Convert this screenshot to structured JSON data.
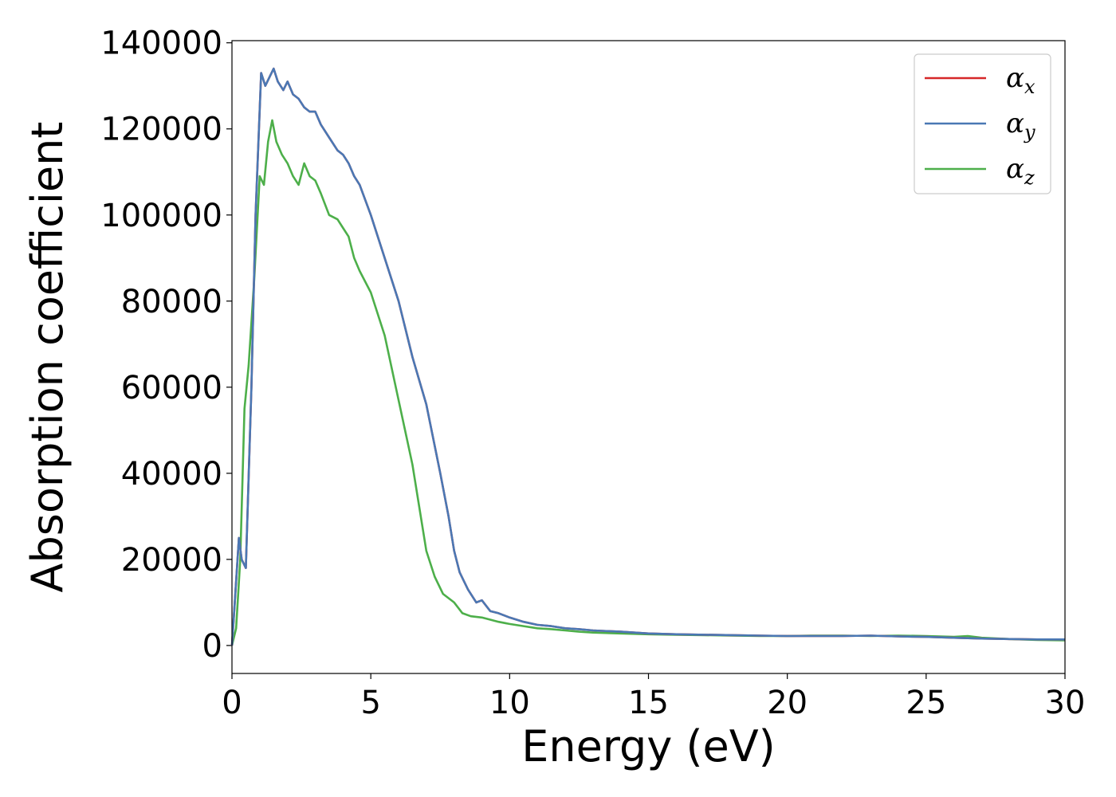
{
  "chart_data": {
    "type": "line",
    "xlabel": "Energy (eV)",
    "ylabel": "Absorption coefficient",
    "xlim": [
      0,
      30
    ],
    "ylim": [
      -6500,
      140500
    ],
    "xticks": [
      0,
      5,
      10,
      15,
      20,
      25,
      30
    ],
    "xtick_labels": [
      "0",
      "5",
      "10",
      "15",
      "20",
      "25",
      "30"
    ],
    "yticks": [
      0,
      20000,
      40000,
      60000,
      80000,
      100000,
      120000,
      140000
    ],
    "ytick_labels": [
      "0",
      "20000",
      "40000",
      "60000",
      "80000",
      "100000",
      "120000",
      "140000"
    ],
    "grid": false,
    "legend_position": "top-right",
    "series": [
      {
        "name": "α_x",
        "label_main": "α",
        "label_sub": "x",
        "color": "#d62728",
        "x": [
          0,
          0.1,
          0.25,
          0.35,
          0.5,
          0.7,
          0.85,
          1.05,
          1.2,
          1.35,
          1.5,
          1.65,
          1.85,
          2.0,
          2.2,
          2.4,
          2.6,
          2.8,
          3.0,
          3.2,
          3.5,
          3.8,
          4.0,
          4.2,
          4.4,
          4.6,
          5.0,
          5.5,
          6.0,
          6.5,
          7.0,
          7.5,
          7.8,
          8.0,
          8.2,
          8.5,
          8.8,
          9.0,
          9.3,
          9.6,
          10.0,
          10.5,
          11.0,
          11.5,
          12.0,
          12.5,
          13.0,
          14.0,
          15.0,
          16.0,
          17.0,
          18.0,
          19.0,
          20.0,
          21.0,
          22.0,
          23.0,
          24.0,
          25.0,
          26.0,
          27.0,
          28.0,
          29.0,
          30.0
        ],
        "y": [
          0,
          10000,
          25000,
          20000,
          18000,
          60000,
          100000,
          133000,
          130000,
          132000,
          134000,
          131000,
          129000,
          131000,
          128000,
          127000,
          125000,
          124000,
          124000,
          121000,
          118000,
          115000,
          114000,
          112000,
          109000,
          107000,
          100000,
          90000,
          80000,
          67000,
          56000,
          40000,
          30000,
          22000,
          17000,
          13000,
          10000,
          10500,
          8000,
          7500,
          6500,
          5500,
          4800,
          4500,
          4000,
          3800,
          3500,
          3200,
          2800,
          2600,
          2500,
          2400,
          2300,
          2200,
          2200,
          2200,
          2300,
          2100,
          2000,
          1800,
          1600,
          1500,
          1400,
          1400
        ]
      },
      {
        "name": "α_y",
        "label_main": "α",
        "label_sub": "y",
        "color": "#4a78b4",
        "x": [
          0,
          0.1,
          0.25,
          0.35,
          0.5,
          0.7,
          0.85,
          1.05,
          1.2,
          1.35,
          1.5,
          1.65,
          1.85,
          2.0,
          2.2,
          2.4,
          2.6,
          2.8,
          3.0,
          3.2,
          3.5,
          3.8,
          4.0,
          4.2,
          4.4,
          4.6,
          5.0,
          5.5,
          6.0,
          6.5,
          7.0,
          7.5,
          7.8,
          8.0,
          8.2,
          8.5,
          8.8,
          9.0,
          9.3,
          9.6,
          10.0,
          10.5,
          11.0,
          11.5,
          12.0,
          12.5,
          13.0,
          14.0,
          15.0,
          16.0,
          17.0,
          18.0,
          19.0,
          20.0,
          21.0,
          22.0,
          23.0,
          24.0,
          25.0,
          26.0,
          27.0,
          28.0,
          29.0,
          30.0
        ],
        "y": [
          0,
          10000,
          25000,
          20000,
          18000,
          60000,
          100000,
          133000,
          130000,
          132000,
          134000,
          131000,
          129000,
          131000,
          128000,
          127000,
          125000,
          124000,
          124000,
          121000,
          118000,
          115000,
          114000,
          112000,
          109000,
          107000,
          100000,
          90000,
          80000,
          67000,
          56000,
          40000,
          30000,
          22000,
          17000,
          13000,
          10000,
          10500,
          8000,
          7500,
          6500,
          5500,
          4800,
          4500,
          4000,
          3800,
          3500,
          3200,
          2800,
          2600,
          2500,
          2400,
          2300,
          2200,
          2200,
          2200,
          2300,
          2100,
          2000,
          1800,
          1600,
          1500,
          1400,
          1400
        ]
      },
      {
        "name": "α_z",
        "label_main": "α",
        "label_sub": "z",
        "color": "#4daf4a",
        "x": [
          0,
          0.15,
          0.3,
          0.45,
          0.6,
          0.8,
          1.0,
          1.15,
          1.3,
          1.45,
          1.6,
          1.8,
          2.0,
          2.2,
          2.4,
          2.6,
          2.8,
          3.0,
          3.2,
          3.5,
          3.8,
          4.0,
          4.2,
          4.4,
          4.6,
          5.0,
          5.5,
          6.0,
          6.5,
          7.0,
          7.3,
          7.6,
          8.0,
          8.3,
          8.6,
          9.0,
          9.3,
          9.6,
          10.0,
          10.5,
          11.0,
          11.5,
          12.0,
          12.5,
          13.0,
          14.0,
          15.0,
          16.0,
          17.0,
          18.0,
          19.0,
          20.0,
          21.0,
          22.0,
          23.0,
          24.0,
          25.0,
          26.0,
          26.5,
          27.0,
          28.0,
          29.0,
          30.0
        ],
        "y": [
          0,
          4000,
          20000,
          55000,
          65000,
          85000,
          109000,
          107000,
          117000,
          122000,
          117000,
          114000,
          112000,
          109000,
          107000,
          112000,
          109000,
          108000,
          105000,
          100000,
          99000,
          97000,
          95000,
          90000,
          87000,
          82000,
          72000,
          57000,
          42000,
          22000,
          16000,
          12000,
          10000,
          7500,
          6800,
          6500,
          6000,
          5500,
          5000,
          4500,
          4000,
          3800,
          3500,
          3200,
          3000,
          2800,
          2600,
          2500,
          2400,
          2300,
          2200,
          2200,
          2300,
          2300,
          2200,
          2300,
          2200,
          2000,
          2200,
          1800,
          1500,
          1300,
          1200
        ]
      }
    ]
  }
}
